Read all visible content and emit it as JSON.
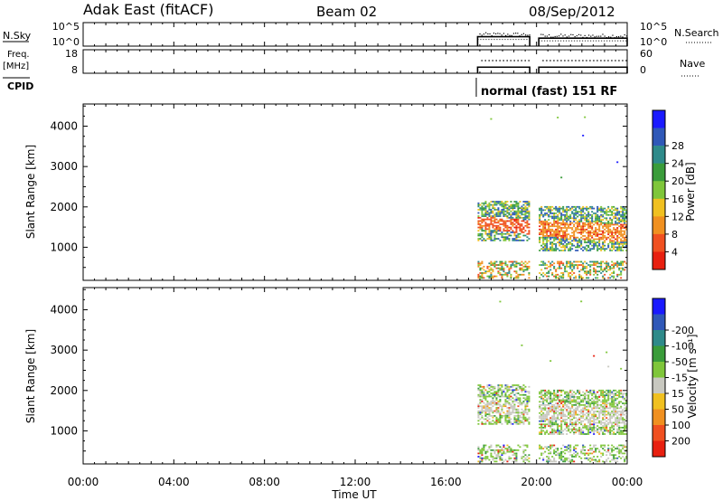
{
  "header": {
    "radar": "Adak East (fitACF)",
    "beam": "Beam 02",
    "date": "08/Sep/2012"
  },
  "side_labels": {
    "nsky": "N.Sky",
    "freq": "Freq.",
    "freq_unit": "[MHz]",
    "cpid": "CPID",
    "nsearch": "N.Search",
    "nave": "Nave"
  },
  "cpid_text": "normal (fast) 151 RF",
  "chart_data": [
    {
      "type": "line",
      "panel": "noise",
      "ylabel_left": "N.Sky",
      "ylabel_right": "N.Search",
      "yticks_left": [
        "10^5",
        "10^0"
      ],
      "yticks_right": [
        "10^5",
        "10^0"
      ],
      "segments": [
        {
          "x": [
            17.4,
            19.7
          ],
          "y": 2.0
        },
        {
          "x": [
            20.1,
            24.0
          ],
          "y": 1.7
        }
      ]
    },
    {
      "type": "line",
      "panel": "frequency",
      "ylabel_left": "Freq. [MHz]",
      "ylabel_right": "Nave",
      "yticks_left": [
        "18",
        "8"
      ],
      "yticks_right": [
        "60",
        "0"
      ],
      "freq_segments": [
        {
          "x": [
            17.4,
            19.7
          ],
          "value": 10.6
        },
        {
          "x": [
            20.1,
            24.0
          ],
          "value": 10.6
        }
      ],
      "nave_segments": [
        {
          "x": [
            17.4,
            19.7
          ],
          "value": 30
        },
        {
          "x": [
            20.1,
            24.0
          ],
          "value": 30
        }
      ]
    },
    {
      "type": "heatmap",
      "panel": "power",
      "ylabel": "Slant Range [km]",
      "yticks": [
        "1000",
        "2000",
        "3000",
        "4000"
      ],
      "ylim": [
        180,
        4550
      ],
      "xlim": [
        0,
        24
      ],
      "colorbar_label": "Power [dB]",
      "colorbar_ticks": [
        "4",
        "8",
        "12",
        "16",
        "20",
        "24",
        "28"
      ],
      "colorbar_colors": [
        "#1a1aff",
        "#2f58b8",
        "#2e8a8a",
        "#3a9c3a",
        "#7fc63a",
        "#f0c020",
        "#f09020",
        "#f05020",
        "#e82010"
      ],
      "scatter_bands": [
        {
          "t": [
            17.4,
            19.7
          ],
          "r": [
            1150,
            2150
          ],
          "core": [
            1450,
            1750
          ],
          "core_color": "#f05020"
        },
        {
          "t": [
            20.1,
            24.0
          ],
          "r": [
            900,
            2000
          ],
          "core": [
            1250,
            1650
          ],
          "core_color": "#f09020"
        }
      ]
    },
    {
      "type": "heatmap",
      "panel": "velocity",
      "ylabel": "Slant Range [km]",
      "yticks": [
        "1000",
        "2000",
        "3000",
        "4000"
      ],
      "ylim": [
        180,
        4550
      ],
      "xlim": [
        0,
        24
      ],
      "colorbar_label": "Velocity [m s⁻¹]",
      "colorbar_ticks": [
        "200",
        "100",
        "50",
        "15",
        "-15",
        "-50",
        "-100",
        "-200"
      ],
      "colorbar_colors": [
        "#1a1aff",
        "#2f58b8",
        "#2e8a8a",
        "#3a9c3a",
        "#7fc63a",
        "#c8c8c0",
        "#f0c020",
        "#f09020",
        "#f05020",
        "#e82010"
      ]
    }
  ],
  "xaxis": {
    "label": "Time UT",
    "ticks": [
      "00:00",
      "04:00",
      "08:00",
      "12:00",
      "16:00",
      "20:00",
      "00:00"
    ]
  }
}
